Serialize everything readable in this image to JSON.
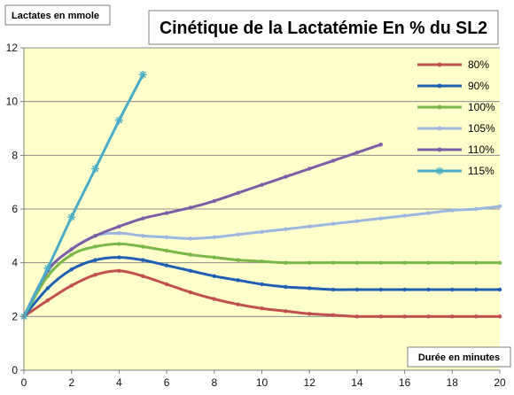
{
  "chart_data": {
    "type": "line",
    "title": "Cinétique de la Lactatémie En % du SL2",
    "ylabel": "Lactates en mmole",
    "xlabel": "Durée en minutes",
    "xlim": [
      0,
      20
    ],
    "ylim": [
      0,
      12
    ],
    "xticks": [
      "0",
      "2",
      "4",
      "6",
      "8",
      "10",
      "12",
      "14",
      "16",
      "18",
      "20"
    ],
    "yticks": [
      "0",
      "2",
      "4",
      "6",
      "8",
      "10",
      "12"
    ],
    "grid": "horizontal",
    "legend_position": "right",
    "series": [
      {
        "name": "80%",
        "color": "#c0504d",
        "marker": "dot",
        "x": [
          0,
          1,
          2,
          3,
          4,
          5,
          6,
          7,
          8,
          9,
          10,
          11,
          12,
          13,
          14,
          15,
          16,
          17,
          18,
          19,
          20
        ],
        "y": [
          2.0,
          2.6,
          3.15,
          3.55,
          3.7,
          3.5,
          3.2,
          2.9,
          2.65,
          2.45,
          2.3,
          2.2,
          2.1,
          2.05,
          2.0,
          2.0,
          2.0,
          2.0,
          2.0,
          2.0,
          2.0
        ]
      },
      {
        "name": "90%",
        "color": "#1f5fb4",
        "marker": "dot",
        "x": [
          0,
          1,
          2,
          3,
          4,
          5,
          6,
          7,
          8,
          9,
          10,
          11,
          12,
          13,
          14,
          15,
          16,
          17,
          18,
          19,
          20
        ],
        "y": [
          2.0,
          3.05,
          3.75,
          4.1,
          4.2,
          4.1,
          3.9,
          3.7,
          3.5,
          3.35,
          3.2,
          3.1,
          3.05,
          3.0,
          3.0,
          3.0,
          3.0,
          3.0,
          3.0,
          3.0,
          3.0
        ]
      },
      {
        "name": "100%",
        "color": "#7ab648",
        "marker": "dot",
        "x": [
          0,
          1,
          2,
          3,
          4,
          5,
          6,
          7,
          8,
          9,
          10,
          11,
          12,
          13,
          14,
          15,
          16,
          17,
          18,
          19,
          20
        ],
        "y": [
          2.0,
          3.5,
          4.3,
          4.6,
          4.7,
          4.6,
          4.45,
          4.3,
          4.2,
          4.1,
          4.05,
          4.0,
          4.0,
          4.0,
          4.0,
          4.0,
          4.0,
          4.0,
          4.0,
          4.0,
          4.0
        ]
      },
      {
        "name": "105%",
        "color": "#9bb7e0",
        "marker": "dot",
        "x": [
          0,
          1,
          2,
          3,
          4,
          5,
          6,
          7,
          8,
          9,
          10,
          11,
          12,
          13,
          14,
          15,
          16,
          17,
          18,
          19,
          20
        ],
        "y": [
          2.0,
          3.7,
          4.5,
          5.0,
          5.1,
          5.0,
          4.95,
          4.9,
          4.95,
          5.05,
          5.15,
          5.25,
          5.35,
          5.45,
          5.55,
          5.65,
          5.75,
          5.85,
          5.95,
          6.0,
          6.1
        ]
      },
      {
        "name": "110%",
        "color": "#7b5ea7",
        "marker": "dot",
        "x": [
          0,
          1,
          2,
          3,
          4,
          5,
          6,
          7,
          8,
          9,
          10,
          11,
          12,
          13,
          14,
          15
        ],
        "y": [
          2.0,
          3.7,
          4.5,
          5.0,
          5.35,
          5.65,
          5.85,
          6.05,
          6.3,
          6.6,
          6.9,
          7.2,
          7.5,
          7.8,
          8.1,
          8.4
        ]
      },
      {
        "name": "115%",
        "color": "#4aacc6",
        "marker": "star",
        "x": [
          0,
          1,
          2,
          3,
          4,
          5
        ],
        "y": [
          2.0,
          3.8,
          5.7,
          7.5,
          9.3,
          11.0
        ]
      }
    ]
  }
}
